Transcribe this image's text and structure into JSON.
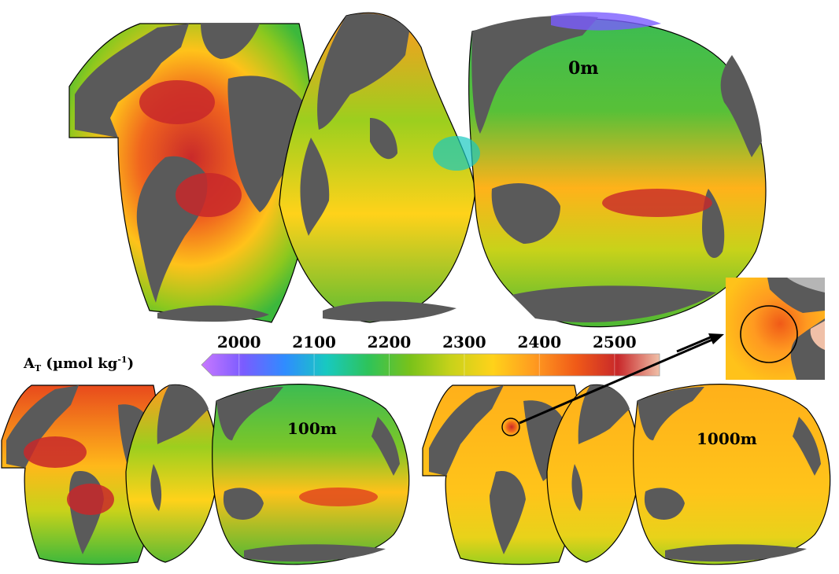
{
  "maps": [
    {
      "depth_label": "0m"
    },
    {
      "depth_label": "100m"
    },
    {
      "depth_label": "1000m"
    }
  ],
  "colorbar": {
    "label_main": "A",
    "label_sub": "T",
    "label_unit_pre": " (µmol kg",
    "label_unit_sup": "-1",
    "label_unit_post": ")",
    "ticks": [
      "2000",
      "2100",
      "2200",
      "2300",
      "2400",
      "2500"
    ],
    "min": 1950,
    "max": 2560,
    "colors": [
      "#c878ff",
      "#7a5cff",
      "#2f8cff",
      "#18c9c0",
      "#2ec35a",
      "#79c21a",
      "#c8d21a",
      "#ffd21a",
      "#ff9a20",
      "#f05a18",
      "#c8282a",
      "#f0c0a8"
    ]
  },
  "palette": {
    "land": "#5a5a5a",
    "ice": "#b5b5b5"
  }
}
